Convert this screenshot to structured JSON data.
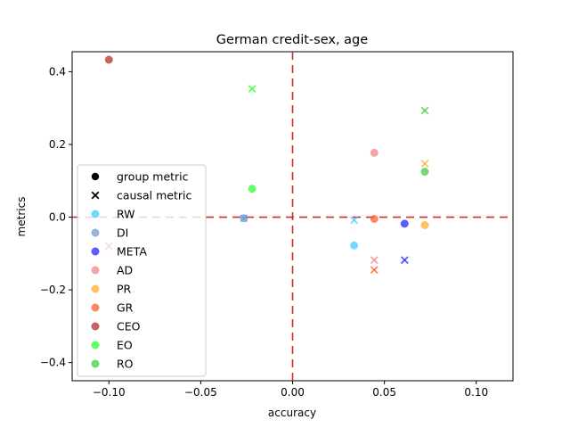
{
  "chart_data": {
    "type": "scatter",
    "title": "German credit-sex, age",
    "xlabel": "accuracy",
    "ylabel": "metrics",
    "xlim": [
      -0.12,
      0.12
    ],
    "ylim": [
      -0.45,
      0.455
    ],
    "xticks": [
      -0.1,
      -0.05,
      0.0,
      0.05,
      0.1
    ],
    "xtick_labels": [
      "−0.10",
      "−0.05",
      "0.00",
      "0.05",
      "0.10"
    ],
    "yticks": [
      -0.4,
      -0.2,
      0.0,
      0.2,
      0.4
    ],
    "ytick_labels": [
      "−0.4",
      "−0.2",
      "0.0",
      "0.2",
      "0.4"
    ],
    "grid": false,
    "legend_position": "lower-left",
    "reference_lines": {
      "x": 0.0,
      "y": 0.0,
      "color": "#d62728",
      "style": "dashed"
    },
    "marker_legend": [
      {
        "label": "group metric",
        "marker": "circle"
      },
      {
        "label": "causal metric",
        "marker": "x"
      }
    ],
    "series": [
      {
        "name": "RW",
        "color": "#33ccff",
        "group": [
          [
            0.0335,
            -0.078
          ]
        ],
        "causal": [
          [
            0.0335,
            -0.008
          ]
        ]
      },
      {
        "name": "DI",
        "color": "#6699cc",
        "group": [
          [
            -0.0265,
            -0.003
          ]
        ],
        "causal": [
          [
            -0.0265,
            -0.003
          ]
        ]
      },
      {
        "name": "META",
        "color": "#1a1aff",
        "group": [
          [
            0.061,
            -0.018
          ]
        ],
        "causal": [
          [
            0.061,
            -0.118
          ]
        ]
      },
      {
        "name": "AD",
        "color": "#f08080",
        "group": [
          [
            0.0445,
            0.177
          ]
        ],
        "causal": [
          [
            0.0445,
            -0.118
          ]
        ]
      },
      {
        "name": "PR",
        "color": "#ffaa22",
        "group": [
          [
            0.072,
            -0.022
          ]
        ],
        "causal": [
          [
            0.072,
            0.147
          ]
        ]
      },
      {
        "name": "GR",
        "color": "#ff5522",
        "group": [
          [
            0.0445,
            -0.005
          ]
        ],
        "causal": [
          [
            0.0445,
            -0.145
          ]
        ]
      },
      {
        "name": "CEO",
        "color": "#b22222",
        "group": [
          [
            -0.1,
            0.433
          ]
        ],
        "causal": [
          [
            -0.1,
            -0.08
          ]
        ]
      },
      {
        "name": "EO",
        "color": "#22ff22",
        "group": [
          [
            -0.022,
            0.078
          ]
        ],
        "causal": [
          [
            -0.022,
            0.353
          ]
        ]
      },
      {
        "name": "RO",
        "color": "#33cc33",
        "group": [
          [
            0.072,
            0.125
          ]
        ],
        "causal": [
          [
            0.072,
            0.293
          ]
        ]
      }
    ]
  }
}
